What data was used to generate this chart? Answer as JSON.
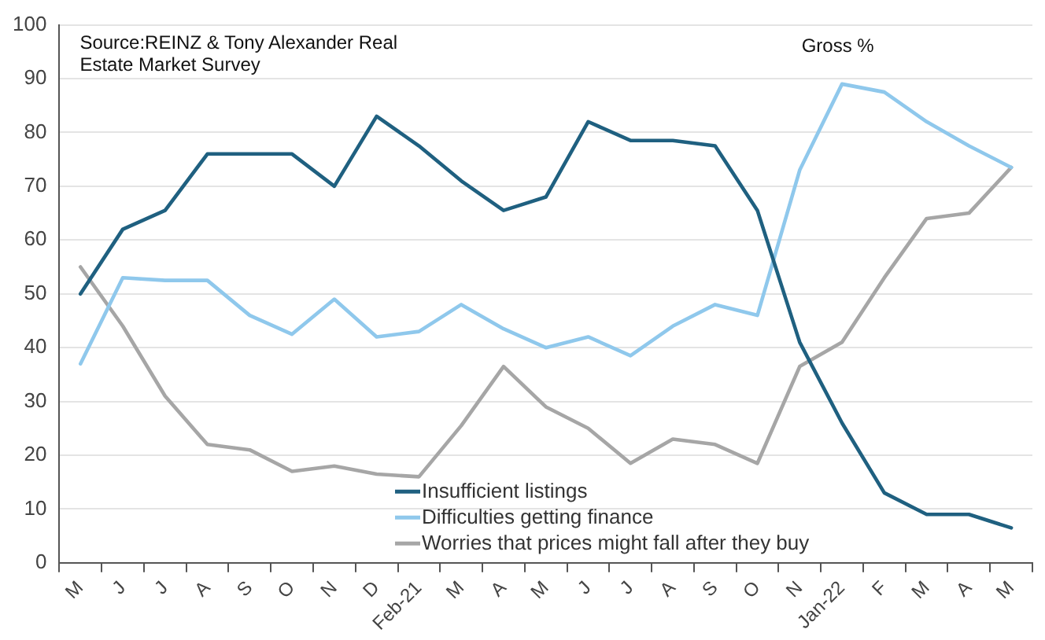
{
  "chart_data": {
    "type": "line",
    "categories": [
      "M",
      "J",
      "J",
      "A",
      "S",
      "O",
      "N",
      "D",
      "Feb-21",
      "M",
      "A",
      "M",
      "J",
      "J",
      "A",
      "S",
      "O",
      "N",
      "Jan-22",
      "F",
      "M",
      "A",
      "M"
    ],
    "series": [
      {
        "name": "Insufficient listings",
        "color": "#1f6080",
        "values": [
          50,
          62,
          65.5,
          76,
          76,
          76,
          70,
          83,
          77.5,
          71,
          65.5,
          68,
          82,
          78.5,
          78.5,
          77.5,
          65.5,
          41,
          26,
          13,
          9,
          9,
          6.5
        ]
      },
      {
        "name": "Difficulties getting finance",
        "color": "#8fc8ec",
        "values": [
          37,
          53,
          52.5,
          52.5,
          46,
          42.5,
          49,
          42,
          43,
          48,
          43.5,
          40,
          42,
          38.5,
          44,
          48,
          46,
          73,
          89,
          87.5,
          82,
          77.5,
          73.5
        ]
      },
      {
        "name": "Worries that prices might fall after they buy",
        "color": "#a6a6a6",
        "values": [
          55,
          44,
          31,
          22,
          21,
          17,
          18,
          16.5,
          16,
          25.5,
          36.5,
          29,
          25,
          18.5,
          23,
          22,
          18.5,
          36.5,
          41,
          53,
          64,
          65,
          73.5
        ]
      }
    ],
    "ylim": [
      0,
      100
    ],
    "yticks": [
      0,
      10,
      20,
      30,
      40,
      50,
      60,
      70,
      80,
      90,
      100
    ],
    "grid": "y",
    "legend": "bottom",
    "marker": "none",
    "line_style": "solid",
    "annotations": [
      "Source:REINZ & Tony Alexander Real Estate Market Survey",
      "Gross %"
    ]
  }
}
